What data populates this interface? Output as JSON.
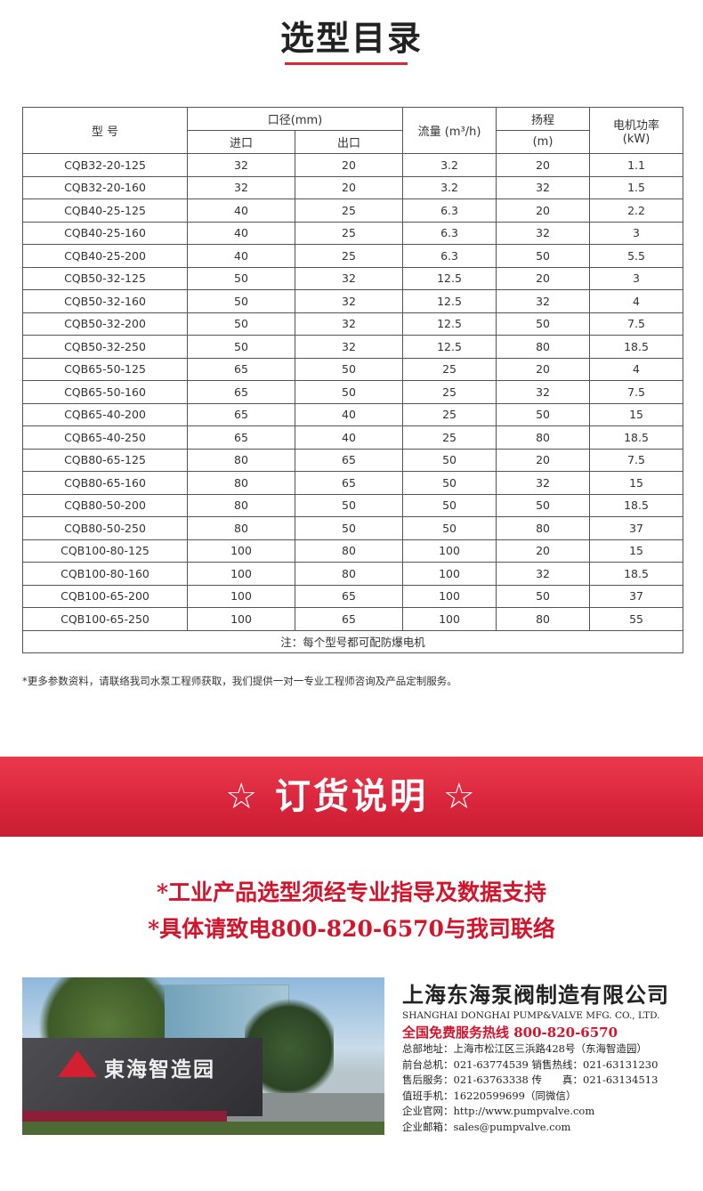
{
  "title": "选型目录",
  "table": {
    "h_model": "型 号",
    "h_caliber": "口径(mm)",
    "h_inlet": "进口",
    "h_outlet": "出口",
    "h_flow": "流量 (m³/h)",
    "h_head": "扬程",
    "h_head_unit": "(m)",
    "h_power": "电机功率",
    "h_power_unit": "(kW)",
    "rows": [
      [
        "CQB32-20-125",
        "32",
        "20",
        "3.2",
        "20",
        "1.1"
      ],
      [
        "CQB32-20-160",
        "32",
        "20",
        "3.2",
        "32",
        "1.5"
      ],
      [
        "CQB40-25-125",
        "40",
        "25",
        "6.3",
        "20",
        "2.2"
      ],
      [
        "CQB40-25-160",
        "40",
        "25",
        "6.3",
        "32",
        "3"
      ],
      [
        "CQB40-25-200",
        "40",
        "25",
        "6.3",
        "50",
        "5.5"
      ],
      [
        "CQB50-32-125",
        "50",
        "32",
        "12.5",
        "20",
        "3"
      ],
      [
        "CQB50-32-160",
        "50",
        "32",
        "12.5",
        "32",
        "4"
      ],
      [
        "CQB50-32-200",
        "50",
        "32",
        "12.5",
        "50",
        "7.5"
      ],
      [
        "CQB50-32-250",
        "50",
        "32",
        "12.5",
        "80",
        "18.5"
      ],
      [
        "CQB65-50-125",
        "65",
        "50",
        "25",
        "20",
        "4"
      ],
      [
        "CQB65-50-160",
        "65",
        "50",
        "25",
        "32",
        "7.5"
      ],
      [
        "CQB65-40-200",
        "65",
        "40",
        "25",
        "50",
        "15"
      ],
      [
        "CQB65-40-250",
        "65",
        "40",
        "25",
        "80",
        "18.5"
      ],
      [
        "CQB80-65-125",
        "80",
        "65",
        "50",
        "20",
        "7.5"
      ],
      [
        "CQB80-65-160",
        "80",
        "65",
        "50",
        "32",
        "15"
      ],
      [
        "CQB80-50-200",
        "80",
        "50",
        "50",
        "50",
        "18.5"
      ],
      [
        "CQB80-50-250",
        "80",
        "50",
        "50",
        "80",
        "37"
      ],
      [
        "CQB100-80-125",
        "100",
        "80",
        "100",
        "20",
        "15"
      ],
      [
        "CQB100-80-160",
        "100",
        "80",
        "100",
        "32",
        "18.5"
      ],
      [
        "CQB100-65-200",
        "100",
        "65",
        "100",
        "50",
        "37"
      ],
      [
        "CQB100-65-250",
        "100",
        "65",
        "100",
        "80",
        "55"
      ]
    ],
    "note": "注：每个型号都可配防爆电机"
  },
  "footnote": "*更多参数资料，请联络我司水泵工程师获取，我们提供一对一专业工程师咨询及产品定制服务。",
  "banner": "☆ 订货说明 ☆",
  "order_lines": [
    "*工业产品选型须经专业指导及数据支持",
    "*具体请致电800-820-6570与我司联络"
  ],
  "photo": {
    "sign_text": "東海智造园"
  },
  "company": {
    "name": "上海东海泵阀制造有限公司",
    "name_en": "SHANGHAI DONGHAI PUMP&VALVE MFG. CO., LTD.",
    "hotline": "全国免费服务热线 800-820-6570",
    "info": [
      "总部地址：上海市松江区三浜路428号（东海智造园）",
      "前台总机：021-63774539  销售热线：021-63131230",
      "售后服务：021-63763338  传　　真：021-63134513",
      "值班手机：16220599699（同微信）",
      "企业官网：http://www.pumpvalve.com",
      "企业邮箱：sales@pumpvalve.com"
    ]
  },
  "colors": {
    "accent": "#d92638",
    "text_red": "#d3142b"
  }
}
